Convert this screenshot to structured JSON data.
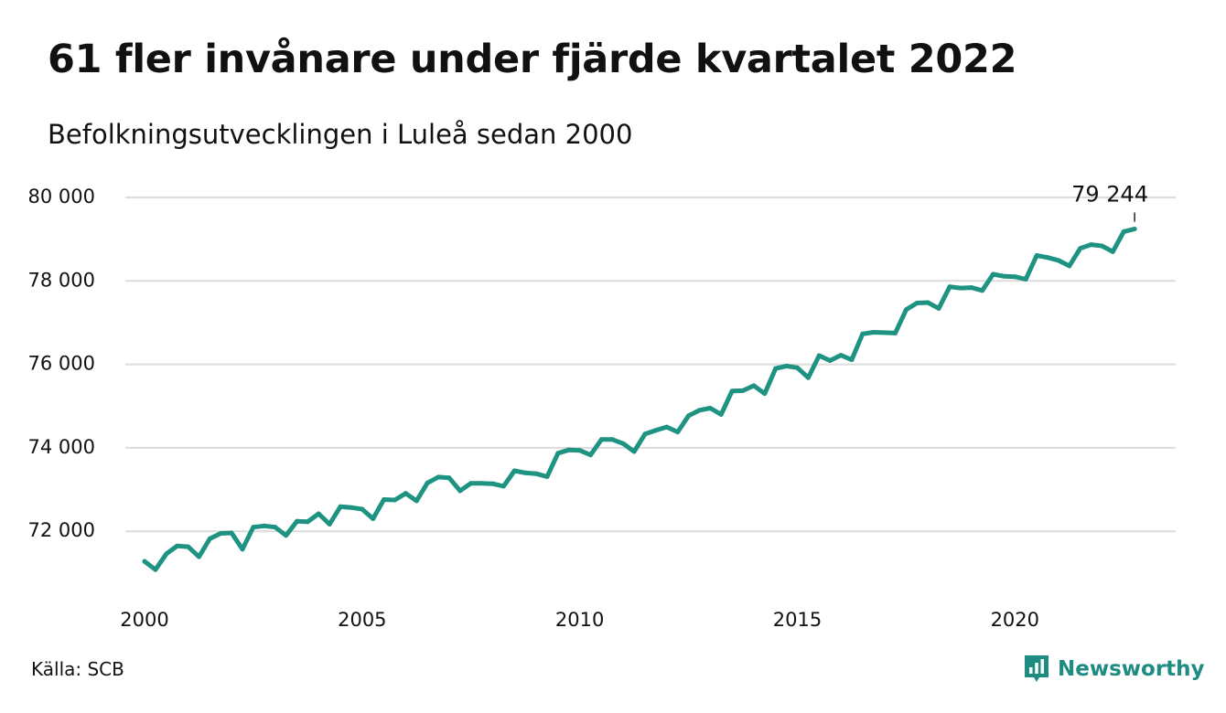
{
  "title": "61 fler invånare under fjärde kvartalet 2022",
  "subtitle": "Befolkningsutvecklingen i Luleå sedan 2000",
  "source": "Källa: SCB",
  "brand": {
    "name": "Newsworthy",
    "icon": "newsworthy-logo-icon",
    "color": "#1e8c80"
  },
  "chart_data": {
    "type": "line",
    "x_unit": "year",
    "x_ticks": [
      2000,
      2005,
      2010,
      2015,
      2020
    ],
    "x_tick_labels": [
      "2000",
      "2005",
      "2010",
      "2015",
      "2020"
    ],
    "y_ticks": [
      72000,
      74000,
      76000,
      78000,
      80000
    ],
    "y_tick_labels": [
      "72 000",
      "74 000",
      "76 000",
      "78 000",
      "80 000"
    ],
    "xlim": [
      2000,
      2023
    ],
    "ylim": [
      70800,
      80000
    ],
    "grid": true,
    "line_color": "#1e9382",
    "annotation": {
      "x": 2022.75,
      "y": 79244,
      "label": "79 244"
    },
    "series": [
      {
        "x": [
          2000.0,
          2000.25,
          2000.5,
          2000.75,
          2001.0,
          2001.25,
          2001.5,
          2001.75,
          2002.0,
          2002.25,
          2002.5,
          2002.75,
          2003.0,
          2003.25,
          2003.5,
          2003.75,
          2004.0,
          2004.25,
          2004.5,
          2004.75,
          2005.0,
          2005.25,
          2005.5,
          2005.75,
          2006.0,
          2006.25,
          2006.5,
          2006.75,
          2007.0,
          2007.25,
          2007.5,
          2007.75,
          2008.0,
          2008.25,
          2008.5,
          2008.75,
          2009.0,
          2009.25,
          2009.5,
          2009.75,
          2010.0,
          2010.25,
          2010.5,
          2010.75,
          2011.0,
          2011.25,
          2011.5,
          2011.75,
          2012.0,
          2012.25,
          2012.5,
          2012.75,
          2013.0,
          2013.25,
          2013.5,
          2013.75,
          2014.0,
          2014.25,
          2014.5,
          2014.75,
          2015.0,
          2015.25,
          2015.5,
          2015.75,
          2016.0,
          2016.25,
          2016.5,
          2016.75,
          2017.0,
          2017.25,
          2017.5,
          2017.75,
          2018.0,
          2018.25,
          2018.5,
          2018.75,
          2019.0,
          2019.25,
          2019.5,
          2019.75,
          2020.0,
          2020.25,
          2020.5,
          2020.75,
          2021.0,
          2021.25,
          2021.5,
          2021.75,
          2022.0,
          2022.25,
          2022.5,
          2022.75
        ],
        "y": [
          71280,
          71080,
          71460,
          71650,
          71630,
          71390,
          71820,
          71950,
          71960,
          71570,
          72100,
          72130,
          72100,
          71900,
          72240,
          72230,
          72420,
          72170,
          72590,
          72570,
          72530,
          72300,
          72760,
          72750,
          72910,
          72730,
          73160,
          73300,
          73280,
          72970,
          73150,
          73150,
          73140,
          73080,
          73450,
          73400,
          73380,
          73310,
          73870,
          73950,
          73940,
          73830,
          74200,
          74200,
          74100,
          73910,
          74330,
          74420,
          74500,
          74380,
          74770,
          74900,
          74950,
          74800,
          75360,
          75370,
          75490,
          75300,
          75900,
          75960,
          75920,
          75680,
          76210,
          76090,
          76220,
          76110,
          76730,
          76770,
          76760,
          76750,
          77310,
          77470,
          77480,
          77340,
          77860,
          77830,
          77840,
          77770,
          78160,
          78110,
          78100,
          78040,
          78610,
          78560,
          78490,
          78360,
          78780,
          78870,
          78840,
          78700,
          79180,
          79244
        ]
      }
    ]
  }
}
